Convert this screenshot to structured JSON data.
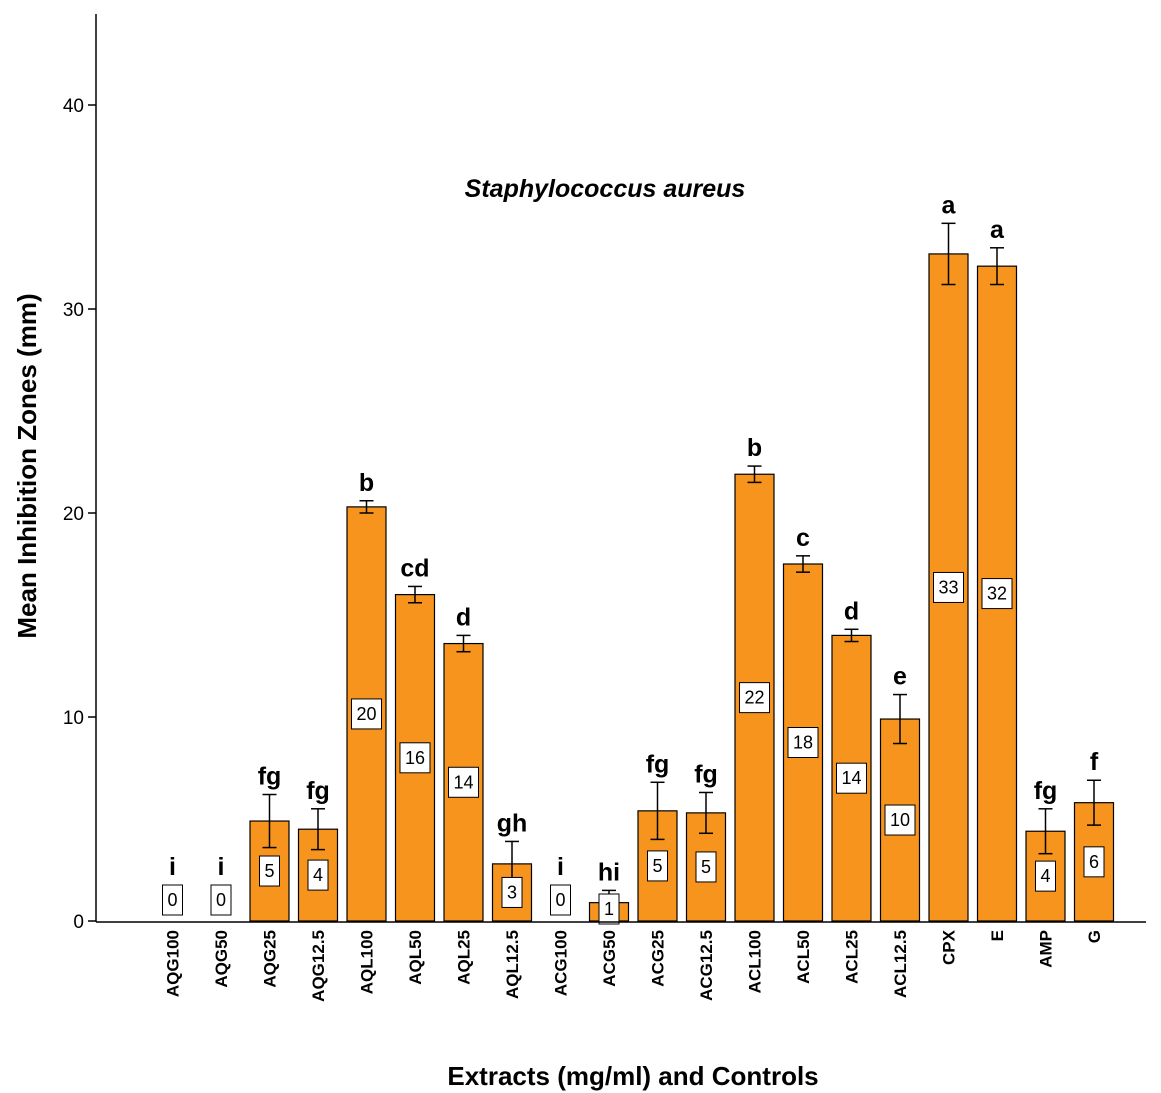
{
  "chart_data": {
    "type": "bar",
    "title": "Staphylococcus aureus",
    "xlabel": "Extracts (mg/ml) and Controls",
    "ylabel": "Mean Inhibition Zones (mm)",
    "ylim": [
      0,
      44
    ],
    "yticks": [
      0,
      10,
      20,
      30,
      40
    ],
    "grid": false,
    "bar_color": "#f7941d",
    "categories": [
      "AQG100",
      "AQG50",
      "AQG25",
      "AQG12.5",
      "AQL100",
      "AQL50",
      "AQL25",
      "AQL12.5",
      "ACG100",
      "ACG50",
      "ACG25",
      "ACG12.5",
      "ACL100",
      "ACL50",
      "ACL25",
      "ACL12.5",
      "CPX",
      "E",
      "AMP",
      "G"
    ],
    "values": [
      0,
      0,
      4.9,
      4.5,
      20.3,
      16.0,
      13.6,
      2.8,
      0,
      0.9,
      5.4,
      5.3,
      21.9,
      17.5,
      14.0,
      9.9,
      32.7,
      32.1,
      4.4,
      5.8
    ],
    "errors": [
      0,
      0,
      1.3,
      1.0,
      0.3,
      0.4,
      0.4,
      1.1,
      0,
      0.6,
      1.4,
      1.0,
      0.4,
      0.4,
      0.3,
      1.2,
      1.5,
      0.9,
      1.1,
      1.1
    ],
    "value_labels": [
      "0",
      "0",
      "5",
      "4",
      "20",
      "16",
      "14",
      "3",
      "0",
      "1",
      "5",
      "5",
      "22",
      "18",
      "14",
      "10",
      "33",
      "32",
      "4",
      "6"
    ],
    "significance_letters": [
      "i",
      "i",
      "fg",
      "fg",
      "b",
      "cd",
      "d",
      "gh",
      "i",
      "hi",
      "fg",
      "fg",
      "b",
      "c",
      "d",
      "e",
      "a",
      "a",
      "fg",
      "f"
    ]
  }
}
